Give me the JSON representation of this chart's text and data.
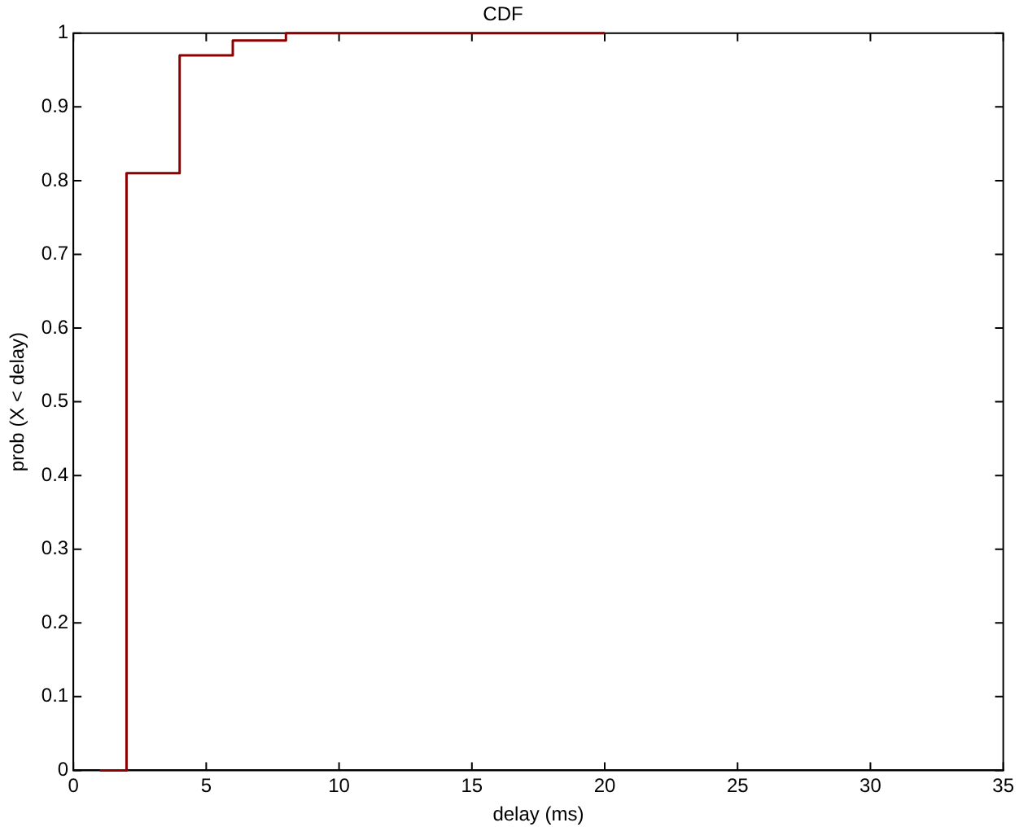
{
  "chart_data": {
    "type": "step",
    "title": "CDF",
    "xlabel": "delay (ms)",
    "ylabel": "prob (X < delay)",
    "x": [
      1,
      2,
      4,
      6,
      8,
      20
    ],
    "series": [
      {
        "color": "#8b0000",
        "values": [
          0,
          0.81,
          0.97,
          0.99,
          1,
          1
        ]
      }
    ],
    "xlim": [
      0,
      35
    ],
    "xticks": [
      0,
      5,
      10,
      15,
      20,
      25,
      30,
      35
    ],
    "ylim": [
      0,
      1
    ],
    "yticks": [
      0,
      0.1,
      0.2,
      0.3,
      0.4,
      0.5,
      0.6,
      0.7,
      0.8,
      0.9,
      1
    ],
    "grid": false,
    "legend": false
  }
}
